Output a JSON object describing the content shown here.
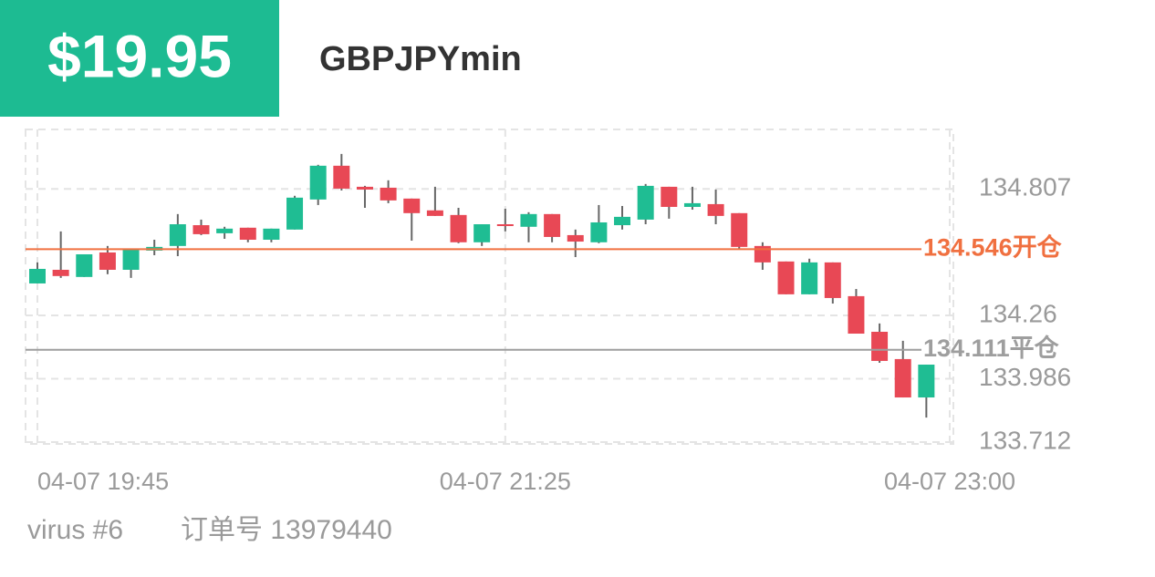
{
  "header": {
    "profit": "$19.95",
    "symbol": "GBPJPYmin"
  },
  "chart_data": {
    "type": "candlestick",
    "up_color": "#1fbd93",
    "down_color": "#e84855",
    "wick_color": "#666666",
    "open": [
      134.398,
      134.457,
      134.426,
      134.532,
      134.457,
      134.54,
      134.56,
      134.65,
      134.615,
      134.639,
      134.587,
      134.631,
      134.761,
      134.907,
      134.816,
      134.812,
      134.765,
      134.714,
      134.694,
      134.576,
      134.654,
      134.643,
      134.698,
      134.607,
      134.576,
      134.65,
      134.674,
      134.816,
      134.729,
      134.741,
      134.702,
      134.56,
      134.493,
      134.351,
      134.489,
      134.343,
      134.189,
      134.071,
      133.905
    ],
    "high": [
      134.489,
      134.623,
      134.524,
      134.56,
      134.544,
      134.587,
      134.698,
      134.674,
      134.643,
      134.639,
      134.635,
      134.777,
      134.911,
      134.958,
      134.82,
      134.844,
      134.765,
      134.816,
      134.725,
      134.654,
      134.721,
      134.706,
      134.698,
      134.631,
      134.737,
      134.733,
      134.828,
      134.816,
      134.816,
      134.804,
      134.702,
      134.576,
      134.493,
      134.505,
      134.489,
      134.374,
      134.225,
      134.15,
      134.047
    ],
    "low": [
      134.398,
      134.422,
      134.426,
      134.438,
      134.422,
      134.52,
      134.516,
      134.607,
      134.591,
      134.576,
      134.576,
      134.631,
      134.737,
      134.8,
      134.725,
      134.745,
      134.583,
      134.69,
      134.572,
      134.56,
      134.623,
      134.576,
      134.576,
      134.512,
      134.572,
      134.631,
      134.654,
      134.678,
      134.717,
      134.654,
      134.548,
      134.457,
      134.351,
      134.351,
      134.311,
      134.181,
      134.055,
      133.905,
      133.818
    ],
    "close": [
      134.461,
      134.43,
      134.524,
      134.457,
      134.544,
      134.556,
      134.654,
      134.611,
      134.635,
      134.587,
      134.635,
      134.769,
      134.907,
      134.808,
      134.804,
      134.757,
      134.702,
      134.69,
      134.576,
      134.654,
      134.647,
      134.698,
      134.599,
      134.579,
      134.662,
      134.686,
      134.82,
      134.729,
      134.745,
      134.69,
      134.556,
      134.489,
      134.351,
      134.489,
      134.335,
      134.181,
      134.063,
      133.905,
      134.047
    ],
    "xlim": [
      0,
      39
    ],
    "xticks": [
      {
        "value": 0,
        "label": "04-07 19:45"
      },
      {
        "value": 20,
        "label": "04-07 21:25"
      },
      {
        "value": 39,
        "label": "04-07 23:00"
      }
    ],
    "ylim": [
      133.712,
      135.06
    ],
    "yticks": [
      133.712,
      133.986,
      134.26,
      134.807
    ],
    "grid": true,
    "open_line": {
      "value": 134.546,
      "label": "134.546开仓",
      "color": "#f07040"
    },
    "close_line": {
      "value": 134.111,
      "label": "134.111平仓",
      "color": "#9e9e9e"
    }
  },
  "footer": {
    "account": "virus #6",
    "order": "订单号 13979440"
  }
}
